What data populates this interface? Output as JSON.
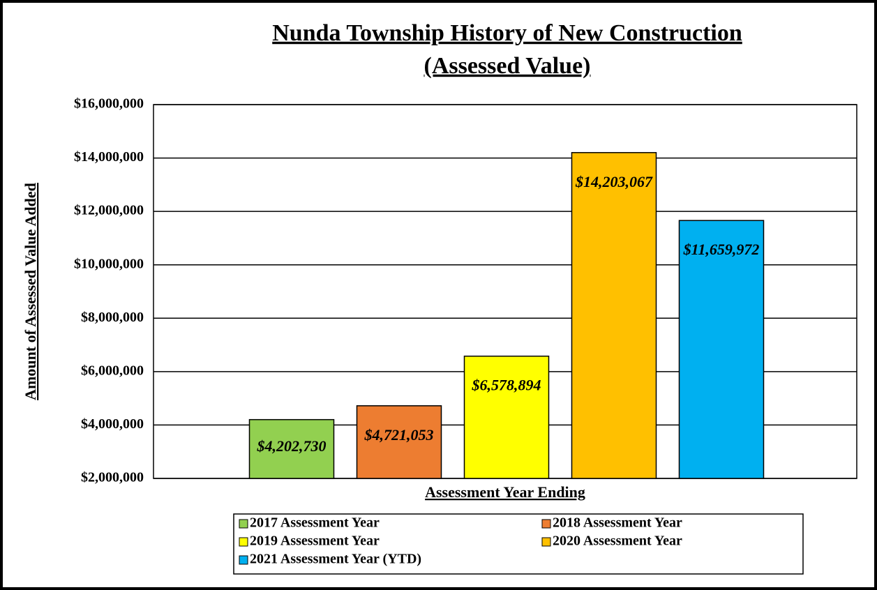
{
  "chart_data": {
    "type": "bar",
    "title": [
      "Nunda Township History of New Construction",
      "(Assessed Value)"
    ],
    "x_label": "Assessment Year Ending",
    "y_label": "Amount of Assessed Value Added",
    "categories": [
      null
    ],
    "series": [
      {
        "name": "2017 Assessment Year",
        "color": "#92d050",
        "values": [
          4202730
        ],
        "value_labels": [
          "$4,202,730"
        ]
      },
      {
        "name": "2018 Assessment Year",
        "color": "#ed7d31",
        "values": [
          4721053
        ],
        "value_labels": [
          "$4,721,053"
        ]
      },
      {
        "name": "2019 Assessment Year",
        "color": "#ffff00",
        "values": [
          6578894
        ],
        "value_labels": [
          "$6,578,894"
        ]
      },
      {
        "name": "2020 Assessment Year",
        "color": "#ffc000",
        "values": [
          14203067
        ],
        "value_labels": [
          "$14,203,067"
        ]
      },
      {
        "name": "2021 Assessment Year (YTD)",
        "color": "#00b0f0",
        "values": [
          11659972
        ],
        "value_labels": [
          "$11,659,972"
        ]
      }
    ],
    "ylim": [
      2000000,
      16000000
    ],
    "yticks": [
      {
        "value": 2000000,
        "label": "$2,000,000"
      },
      {
        "value": 4000000,
        "label": "$4,000,000"
      },
      {
        "value": 6000000,
        "label": "$6,000,000"
      },
      {
        "value": 8000000,
        "label": "$8,000,000"
      },
      {
        "value": 10000000,
        "label": "$10,000,000"
      },
      {
        "value": 12000000,
        "label": "$12,000,000"
      },
      {
        "value": 14000000,
        "label": "$14,000,000"
      },
      {
        "value": 16000000,
        "label": "$16,000,000"
      }
    ],
    "grid": true,
    "legend": "bottom"
  }
}
